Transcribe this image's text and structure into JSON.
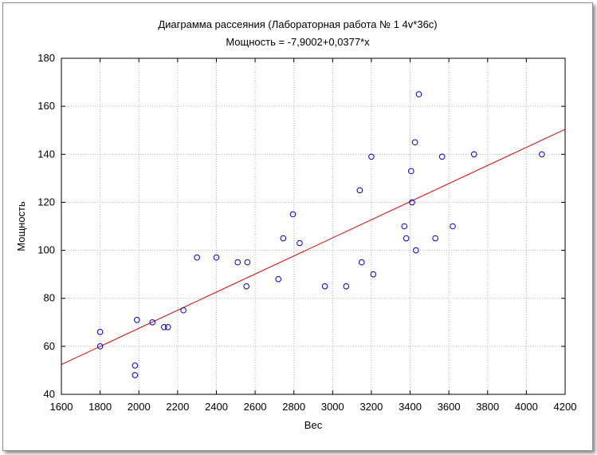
{
  "chart_data": {
    "type": "scatter",
    "title": "Диаграмма рассеяния (Лабораторная работа № 1 4v*36c)",
    "subtitle": "Мощность = -7,9002+0,0377*x",
    "xlabel": "Вес",
    "ylabel": "Мощность",
    "xlim": [
      1600,
      4200
    ],
    "ylim": [
      40,
      180
    ],
    "xticks": [
      1600,
      1800,
      2000,
      2200,
      2400,
      2600,
      2800,
      3000,
      3200,
      3400,
      3600,
      3800,
      4000,
      4200
    ],
    "yticks": [
      40,
      60,
      80,
      100,
      120,
      140,
      160,
      180
    ],
    "grid": true,
    "regression": {
      "intercept": -7.9002,
      "slope": 0.0377,
      "color": "#e00000"
    },
    "point_color": "#0000cc",
    "points": [
      {
        "x": 1800,
        "y": 66
      },
      {
        "x": 1800,
        "y": 60
      },
      {
        "x": 1980,
        "y": 52
      },
      {
        "x": 1980,
        "y": 48
      },
      {
        "x": 1990,
        "y": 71
      },
      {
        "x": 2070,
        "y": 70
      },
      {
        "x": 2130,
        "y": 68
      },
      {
        "x": 2150,
        "y": 68
      },
      {
        "x": 2230,
        "y": 75
      },
      {
        "x": 2300,
        "y": 97
      },
      {
        "x": 2400,
        "y": 97
      },
      {
        "x": 2510,
        "y": 95
      },
      {
        "x": 2560,
        "y": 95
      },
      {
        "x": 2555,
        "y": 85
      },
      {
        "x": 2720,
        "y": 88
      },
      {
        "x": 2745,
        "y": 105
      },
      {
        "x": 2795,
        "y": 115
      },
      {
        "x": 2830,
        "y": 103
      },
      {
        "x": 2960,
        "y": 85
      },
      {
        "x": 3070,
        "y": 85
      },
      {
        "x": 3140,
        "y": 125
      },
      {
        "x": 3150,
        "y": 95
      },
      {
        "x": 3200,
        "y": 139
      },
      {
        "x": 3210,
        "y": 90
      },
      {
        "x": 3370,
        "y": 110
      },
      {
        "x": 3380,
        "y": 105
      },
      {
        "x": 3405,
        "y": 133
      },
      {
        "x": 3410,
        "y": 120
      },
      {
        "x": 3425,
        "y": 145
      },
      {
        "x": 3430,
        "y": 100
      },
      {
        "x": 3445,
        "y": 165
      },
      {
        "x": 3530,
        "y": 105
      },
      {
        "x": 3565,
        "y": 139
      },
      {
        "x": 3620,
        "y": 110
      },
      {
        "x": 3730,
        "y": 140
      },
      {
        "x": 4080,
        "y": 140
      }
    ]
  }
}
